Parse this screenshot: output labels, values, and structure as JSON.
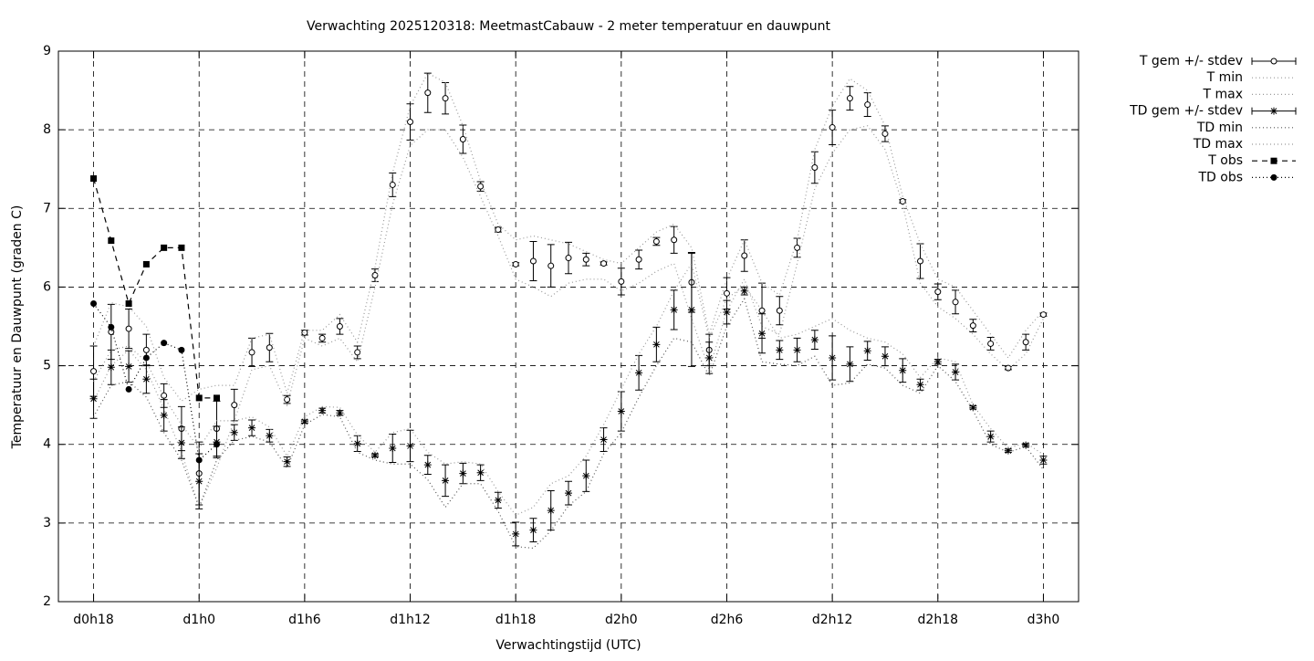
{
  "chart_data": {
    "type": "errorbar-line",
    "title": "Verwachting 2025120318: MeetmastCabauw - 2 meter temperatuur en dauwpunt",
    "x_label": "Verwachtingstijd (UTC)",
    "y_label": "Temperatuur en Dauwpunt (graden C)",
    "xlim": [
      16,
      74
    ],
    "ylim": [
      2,
      9
    ],
    "xticks": [
      {
        "value": 18,
        "label": "d0h18"
      },
      {
        "value": 24,
        "label": "d1h0"
      },
      {
        "value": 30,
        "label": "d1h6"
      },
      {
        "value": 36,
        "label": "d1h12"
      },
      {
        "value": 42,
        "label": "d1h18"
      },
      {
        "value": 48,
        "label": "d2h0"
      },
      {
        "value": 54,
        "label": "d2h6"
      },
      {
        "value": 60,
        "label": "d2h12"
      },
      {
        "value": 66,
        "label": "d2h18"
      },
      {
        "value": 72,
        "label": "d3h0"
      }
    ],
    "yticks": [
      2,
      3,
      4,
      5,
      6,
      7,
      8,
      9
    ],
    "grid": true,
    "legend": "outside-top-right",
    "x": [
      18,
      19,
      20,
      21,
      22,
      23,
      24,
      25,
      26,
      27,
      28,
      29,
      30,
      31,
      32,
      33,
      34,
      35,
      36,
      37,
      38,
      39,
      40,
      41,
      42,
      43,
      44,
      45,
      46,
      47,
      48,
      49,
      50,
      51,
      52,
      53,
      54,
      55,
      56,
      57,
      58,
      59,
      60,
      61,
      62,
      63,
      64,
      65,
      66,
      67,
      68,
      69,
      70,
      71,
      72
    ],
    "series": [
      {
        "name": "T gem +/- stdev",
        "color": "#000000",
        "style": "errorbars",
        "marker": "circle",
        "values": [
          4.93,
          5.43,
          5.47,
          5.2,
          4.62,
          4.2,
          3.63,
          4.2,
          4.5,
          5.17,
          5.23,
          4.57,
          5.42,
          5.35,
          5.5,
          5.17,
          6.15,
          7.3,
          8.1,
          8.47,
          8.4,
          7.88,
          7.28,
          6.73,
          6.29,
          6.33,
          6.27,
          6.37,
          6.35,
          6.3,
          6.07,
          6.35,
          6.58,
          6.6,
          6.06,
          5.2,
          5.92,
          6.4,
          5.7,
          5.7,
          6.5,
          7.52,
          8.03,
          8.4,
          8.32,
          7.95,
          7.09,
          6.33,
          5.94,
          5.81,
          5.51,
          5.28,
          4.97,
          5.3,
          5.65
        ],
        "errors": [
          0.32,
          0.35,
          0.25,
          0.2,
          0.15,
          0.28,
          0.4,
          0.35,
          0.2,
          0.18,
          0.18,
          0.05,
          0.03,
          0.05,
          0.1,
          0.08,
          0.08,
          0.15,
          0.23,
          0.25,
          0.2,
          0.18,
          0.06,
          0.03,
          0.02,
          0.25,
          0.27,
          0.2,
          0.08,
          0.02,
          0.17,
          0.12,
          0.05,
          0.17,
          0.38,
          0.2,
          0.2,
          0.2,
          0.35,
          0.18,
          0.12,
          0.2,
          0.22,
          0.15,
          0.15,
          0.1,
          0.02,
          0.22,
          0.1,
          0.15,
          0.08,
          0.08,
          0.02,
          0.1,
          0.02
        ]
      },
      {
        "name": "T min",
        "color": "#999999",
        "style": "dotted",
        "values": [
          4.55,
          5.0,
          5.2,
          4.95,
          4.45,
          3.9,
          3.2,
          3.7,
          4.3,
          4.95,
          5.0,
          4.5,
          5.35,
          5.25,
          5.35,
          5.05,
          6.0,
          7.05,
          7.8,
          8.0,
          8.0,
          7.65,
          7.15,
          6.65,
          6.1,
          6.0,
          5.88,
          6.05,
          6.1,
          6.1,
          5.95,
          6.05,
          6.2,
          6.3,
          5.6,
          4.95,
          5.7,
          6.1,
          5.5,
          5.4,
          6.3,
          7.25,
          7.7,
          8.0,
          8.05,
          7.75,
          7.05,
          6.05,
          5.75,
          5.6,
          5.4,
          5.15,
          4.95,
          5.15,
          5.6
        ]
      },
      {
        "name": "T max",
        "color": "#999999",
        "style": "dotted",
        "values": [
          5.25,
          5.8,
          5.75,
          5.5,
          4.85,
          4.55,
          4.7,
          4.75,
          4.75,
          5.35,
          5.4,
          4.65,
          5.45,
          5.45,
          5.65,
          5.3,
          6.25,
          7.45,
          8.3,
          8.72,
          8.6,
          8.05,
          7.35,
          6.8,
          6.6,
          6.65,
          6.6,
          6.55,
          6.45,
          6.35,
          6.3,
          6.5,
          6.7,
          6.8,
          6.5,
          5.4,
          6.1,
          6.6,
          6.05,
          5.9,
          6.6,
          7.75,
          8.3,
          8.65,
          8.5,
          8.05,
          7.15,
          6.55,
          6.1,
          6.0,
          5.7,
          5.4,
          5.1,
          5.45,
          5.7
        ]
      },
      {
        "name": "TD gem +/- stdev",
        "color": "#000000",
        "style": "errorbars",
        "marker": "star",
        "values": [
          4.58,
          4.98,
          4.99,
          4.83,
          4.37,
          4.02,
          3.53,
          4.03,
          4.15,
          4.21,
          4.11,
          3.78,
          4.29,
          4.43,
          4.4,
          4.01,
          3.86,
          3.95,
          3.98,
          3.74,
          3.54,
          3.63,
          3.64,
          3.29,
          2.86,
          2.91,
          3.16,
          3.38,
          3.6,
          4.06,
          4.42,
          4.91,
          5.27,
          5.71,
          5.71,
          5.1,
          5.68,
          5.95,
          5.41,
          5.2,
          5.2,
          5.33,
          5.1,
          5.02,
          5.19,
          5.12,
          4.94,
          4.76,
          5.05,
          4.92,
          4.47,
          4.1,
          3.92,
          3.99,
          3.8
        ],
        "errors": [
          0.25,
          0.22,
          0.2,
          0.18,
          0.2,
          0.2,
          0.35,
          0.2,
          0.1,
          0.1,
          0.08,
          0.06,
          0.02,
          0.03,
          0.03,
          0.1,
          0.02,
          0.18,
          0.2,
          0.12,
          0.2,
          0.13,
          0.1,
          0.1,
          0.15,
          0.15,
          0.25,
          0.15,
          0.2,
          0.15,
          0.25,
          0.22,
          0.22,
          0.25,
          0.72,
          0.2,
          0.15,
          0.05,
          0.25,
          0.12,
          0.15,
          0.12,
          0.28,
          0.22,
          0.12,
          0.12,
          0.15,
          0.07,
          0.03,
          0.1,
          0.02,
          0.07,
          0.02,
          0.02,
          0.05
        ]
      },
      {
        "name": "TD min",
        "color": "#555555",
        "style": "dotted",
        "values": [
          4.35,
          4.75,
          4.8,
          4.6,
          4.15,
          3.8,
          3.2,
          3.8,
          4.05,
          4.1,
          4.03,
          3.7,
          4.25,
          4.38,
          4.35,
          3.9,
          3.8,
          3.75,
          3.75,
          3.55,
          3.2,
          3.5,
          3.5,
          3.15,
          2.7,
          2.68,
          2.9,
          3.22,
          3.4,
          3.88,
          4.15,
          4.6,
          5.0,
          5.35,
          5.3,
          4.87,
          5.5,
          5.85,
          5.05,
          5.02,
          5.0,
          5.12,
          4.75,
          4.78,
          5.02,
          4.97,
          4.75,
          4.65,
          5.0,
          4.8,
          4.43,
          4.0,
          3.9,
          3.97,
          3.68
        ]
      },
      {
        "name": "TD max",
        "color": "#999999",
        "style": "dotted",
        "values": [
          4.8,
          5.2,
          5.25,
          5.05,
          4.6,
          4.25,
          3.95,
          4.3,
          4.3,
          4.35,
          4.22,
          3.85,
          4.35,
          4.48,
          4.47,
          4.12,
          3.9,
          4.15,
          4.2,
          3.9,
          3.75,
          3.78,
          3.75,
          3.4,
          3.1,
          3.2,
          3.5,
          3.6,
          3.85,
          4.25,
          4.7,
          5.15,
          5.5,
          5.95,
          6.3,
          5.35,
          5.85,
          6.02,
          5.7,
          5.35,
          5.4,
          5.5,
          5.6,
          5.45,
          5.35,
          5.3,
          5.15,
          4.85,
          5.1,
          5.05,
          4.5,
          4.2,
          3.95,
          4.02,
          3.87
        ]
      },
      {
        "name": "T obs",
        "color": "#000000",
        "style": "dashed",
        "marker": "square",
        "x": [
          18,
          19,
          20,
          21,
          22,
          23,
          24,
          25
        ],
        "values": [
          7.38,
          6.59,
          5.79,
          6.29,
          6.5,
          6.5,
          4.59,
          4.59
        ]
      },
      {
        "name": "TD obs",
        "color": "#000000",
        "style": "dotted-marker",
        "marker": "dot",
        "x": [
          18,
          19,
          20,
          21,
          22,
          23,
          24,
          25
        ],
        "values": [
          5.79,
          5.49,
          4.7,
          5.1,
          5.29,
          5.2,
          3.8,
          4.0
        ]
      }
    ]
  }
}
